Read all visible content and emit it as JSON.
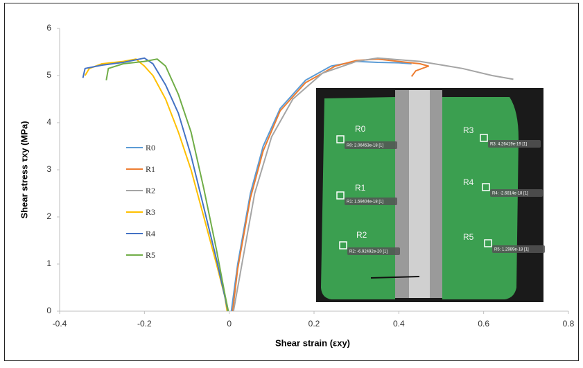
{
  "chart_data": {
    "type": "line",
    "xlabel": "Shear strain (εxy)",
    "ylabel": "Shear stress τxy (MPa)",
    "xlim": [
      -0.4,
      0.8
    ],
    "xticks": [
      -0.4,
      -0.2,
      0,
      0.2,
      0.4,
      0.6,
      0.8
    ],
    "ylim": [
      0,
      6
    ],
    "yticks": [
      0,
      1,
      2,
      3,
      4,
      5,
      6
    ],
    "grid": false,
    "legend": "left",
    "series": [
      {
        "name": "R0",
        "color": "#5b9bd5",
        "x": [
          0.005,
          0.02,
          0.05,
          0.08,
          0.12,
          0.18,
          0.24,
          0.27,
          0.3,
          0.35,
          0.4,
          0.43
        ],
        "values": [
          0,
          1.0,
          2.5,
          3.5,
          4.3,
          4.9,
          5.2,
          5.25,
          5.3,
          5.28,
          5.27,
          5.25
        ]
      },
      {
        "name": "R1",
        "color": "#ed7d31",
        "x": [
          0.008,
          0.02,
          0.05,
          0.08,
          0.12,
          0.18,
          0.25,
          0.3,
          0.35,
          0.4,
          0.45,
          0.47,
          0.44,
          0.43
        ],
        "values": [
          0,
          0.9,
          2.4,
          3.4,
          4.25,
          4.85,
          5.2,
          5.32,
          5.35,
          5.3,
          5.25,
          5.2,
          5.1,
          4.98
        ]
      },
      {
        "name": "R2",
        "color": "#a5a5a5",
        "x": [
          0.01,
          0.03,
          0.06,
          0.1,
          0.15,
          0.22,
          0.3,
          0.35,
          0.45,
          0.55,
          0.62,
          0.67
        ],
        "values": [
          0,
          1.0,
          2.5,
          3.7,
          4.5,
          5.05,
          5.3,
          5.37,
          5.3,
          5.15,
          5.0,
          4.92
        ]
      },
      {
        "name": "R3",
        "color": "#ffc000",
        "x": [
          -0.34,
          -0.33,
          -0.3,
          -0.25,
          -0.22,
          -0.2,
          -0.18,
          -0.15,
          -0.12,
          -0.09,
          -0.06,
          -0.03,
          -0.01,
          -0.005
        ],
        "values": [
          5.0,
          5.15,
          5.25,
          5.3,
          5.35,
          5.2,
          5.0,
          4.5,
          3.8,
          3.0,
          2.0,
          1.0,
          0.3,
          0
        ]
      },
      {
        "name": "R4",
        "color": "#4472c4",
        "x": [
          -0.345,
          -0.34,
          -0.3,
          -0.25,
          -0.2,
          -0.18,
          -0.15,
          -0.12,
          -0.09,
          -0.06,
          -0.03,
          -0.01,
          -0.003
        ],
        "values": [
          4.95,
          5.15,
          5.22,
          5.28,
          5.37,
          5.25,
          4.8,
          4.2,
          3.3,
          2.2,
          1.1,
          0.3,
          0
        ]
      },
      {
        "name": "R5",
        "color": "#70ad47",
        "x": [
          -0.29,
          -0.285,
          -0.25,
          -0.2,
          -0.17,
          -0.15,
          -0.12,
          -0.09,
          -0.06,
          -0.03,
          -0.01,
          -0.002
        ],
        "values": [
          4.9,
          5.15,
          5.25,
          5.3,
          5.35,
          5.2,
          4.6,
          3.8,
          2.6,
          1.3,
          0.35,
          0
        ]
      }
    ]
  },
  "inset": {
    "regions": [
      "R0",
      "R1",
      "R2",
      "R3",
      "R4",
      "R5"
    ],
    "readouts": [
      "R0: 2.06453e-18 [1]",
      "R1: 1.59404e-18 [1]",
      "R2: -6.92492e-20 [1]",
      "R3: 4.26419e-19 [1]",
      "R4: -2.6814e-18 [1]",
      "R5: 1.2989e-18 [1]"
    ]
  }
}
